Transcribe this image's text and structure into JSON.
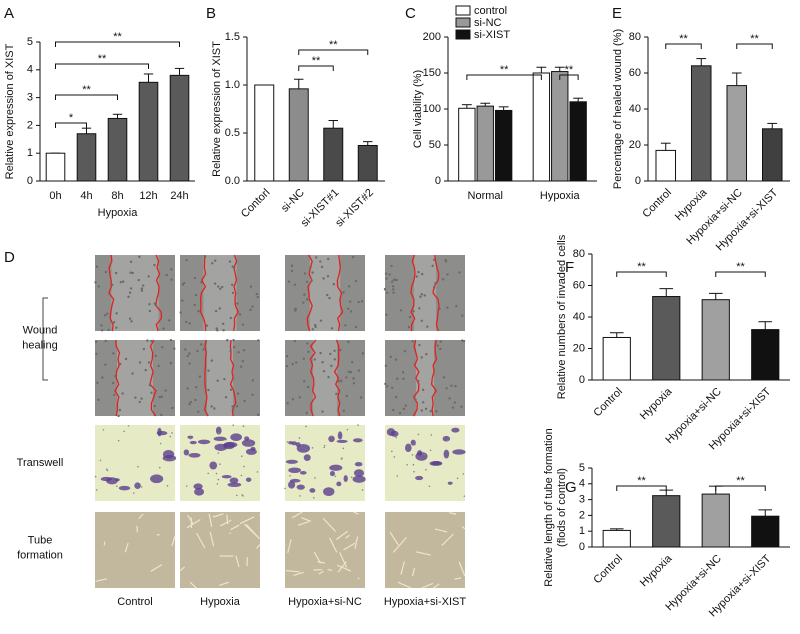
{
  "chart_data": [
    {
      "type": "bar",
      "label": "A",
      "ylabel": [
        "Relative expression of XIST"
      ],
      "xlabel": "Hypoxia",
      "categories": [
        "0h",
        "4h",
        "8h",
        "12h",
        "24h"
      ],
      "values": [
        1.0,
        1.7,
        2.25,
        3.55,
        3.8
      ],
      "errors": [
        0,
        0.2,
        0.15,
        0.3,
        0.25
      ],
      "colors": [
        "#ffffff",
        "#5a5a5a",
        "#5a5a5a",
        "#5a5a5a",
        "#5a5a5a"
      ],
      "ylim": [
        0,
        5
      ],
      "yticks": [
        0,
        1,
        2,
        3,
        4,
        5
      ],
      "annotations": [
        "*",
        "**",
        "**",
        "**"
      ]
    },
    {
      "type": "bar",
      "label": "B",
      "ylabel": [
        "Relative expression of XIST"
      ],
      "categories": [
        "Contorl",
        "si-NC",
        "si-XIST#1",
        "si-XIST#2"
      ],
      "values": [
        1.0,
        0.96,
        0.55,
        0.37
      ],
      "errors": [
        0,
        0.1,
        0.08,
        0.04
      ],
      "colors": [
        "#ffffff",
        "#8c8c8c",
        "#4a4a4a",
        "#4a4a4a"
      ],
      "ylim": [
        0,
        1.5
      ],
      "yticks": [
        {
          "value": 0,
          "label": "0.0"
        },
        {
          "value": 0.5,
          "label": "0.5"
        },
        {
          "value": 1,
          "label": "1.0"
        },
        {
          "value": 1.5,
          "label": "1.5"
        }
      ],
      "annotations": [
        "**",
        "**"
      ]
    },
    {
      "type": "grouped_bar",
      "label": "C",
      "ylabel": [
        "Cell viability (%)"
      ],
      "categories": [
        "Normal",
        "Hypoxia"
      ],
      "series": [
        {
          "name": "control",
          "color": "#ffffff",
          "values": [
            101,
            150
          ],
          "errors": [
            5,
            8
          ]
        },
        {
          "name": "si-NC",
          "color": "#999999",
          "values": [
            104,
            152
          ],
          "errors": [
            4,
            6
          ]
        },
        {
          "name": "si-XIST",
          "color": "#111111",
          "values": [
            98,
            110
          ],
          "errors": [
            5,
            5
          ]
        }
      ],
      "ylim": [
        0,
        200
      ],
      "yticks": [
        0,
        50,
        100,
        150,
        200
      ],
      "annotations": [
        "**",
        "**"
      ]
    },
    {
      "type": "bar",
      "label": "E",
      "ylabel": [
        "Percentage of healed wound (%)"
      ],
      "categories": [
        "Control",
        "Hypoxia",
        "Hypoxia+si-NC",
        "Hypoxia+si-XIST"
      ],
      "values": [
        17,
        64,
        53,
        29
      ],
      "errors": [
        4,
        4,
        7,
        3
      ],
      "colors": [
        "#ffffff",
        "#5a5a5a",
        "#a0a0a0",
        "#404040"
      ],
      "ylim": [
        0,
        80
      ],
      "yticks": [
        0,
        20,
        40,
        60,
        80
      ],
      "annotations": [
        "**",
        "**"
      ]
    },
    {
      "type": "bar",
      "label": "F",
      "ylabel": [
        "Relative numbers of invaded cells"
      ],
      "categories": [
        "Control",
        "Hypoxia",
        "Hypoxia+si-NC",
        "Hypoxia+si-XIST"
      ],
      "values": [
        27,
        53,
        51,
        32
      ],
      "errors": [
        3,
        5,
        4,
        5
      ],
      "colors": [
        "#ffffff",
        "#5a5a5a",
        "#a0a0a0",
        "#111111"
      ],
      "ylim": [
        0,
        80
      ],
      "yticks": [
        0,
        20,
        40,
        60,
        80
      ],
      "annotations": [
        "**",
        "**"
      ]
    },
    {
      "type": "bar",
      "label": "G",
      "ylabel": [
        "Relative length of tube formation",
        "(flods of control)"
      ],
      "categories": [
        "Control",
        "Hypoxia",
        "Hypoxia+si-NC",
        "Hypoxia+si-XIST"
      ],
      "values": [
        1.05,
        3.25,
        3.35,
        1.95
      ],
      "errors": [
        0.1,
        0.35,
        0.5,
        0.4
      ],
      "colors": [
        "#ffffff",
        "#5a5a5a",
        "#a0a0a0",
        "#111111"
      ],
      "ylim": [
        0,
        5
      ],
      "yticks": [
        0,
        1,
        2,
        3,
        4,
        5
      ],
      "annotations": [
        "**",
        "**"
      ]
    }
  ],
  "panel_d": {
    "label": "D",
    "row_labels": [
      {
        "lines": [
          "Wound",
          "healing"
        ]
      },
      {
        "lines": [
          "Transwell"
        ]
      },
      {
        "lines": [
          "Tube",
          "formation"
        ]
      }
    ],
    "columns": [
      "Control",
      "Hypoxia",
      "Hypoxia+si-NC",
      "Hypoxia+si-XIST"
    ]
  }
}
